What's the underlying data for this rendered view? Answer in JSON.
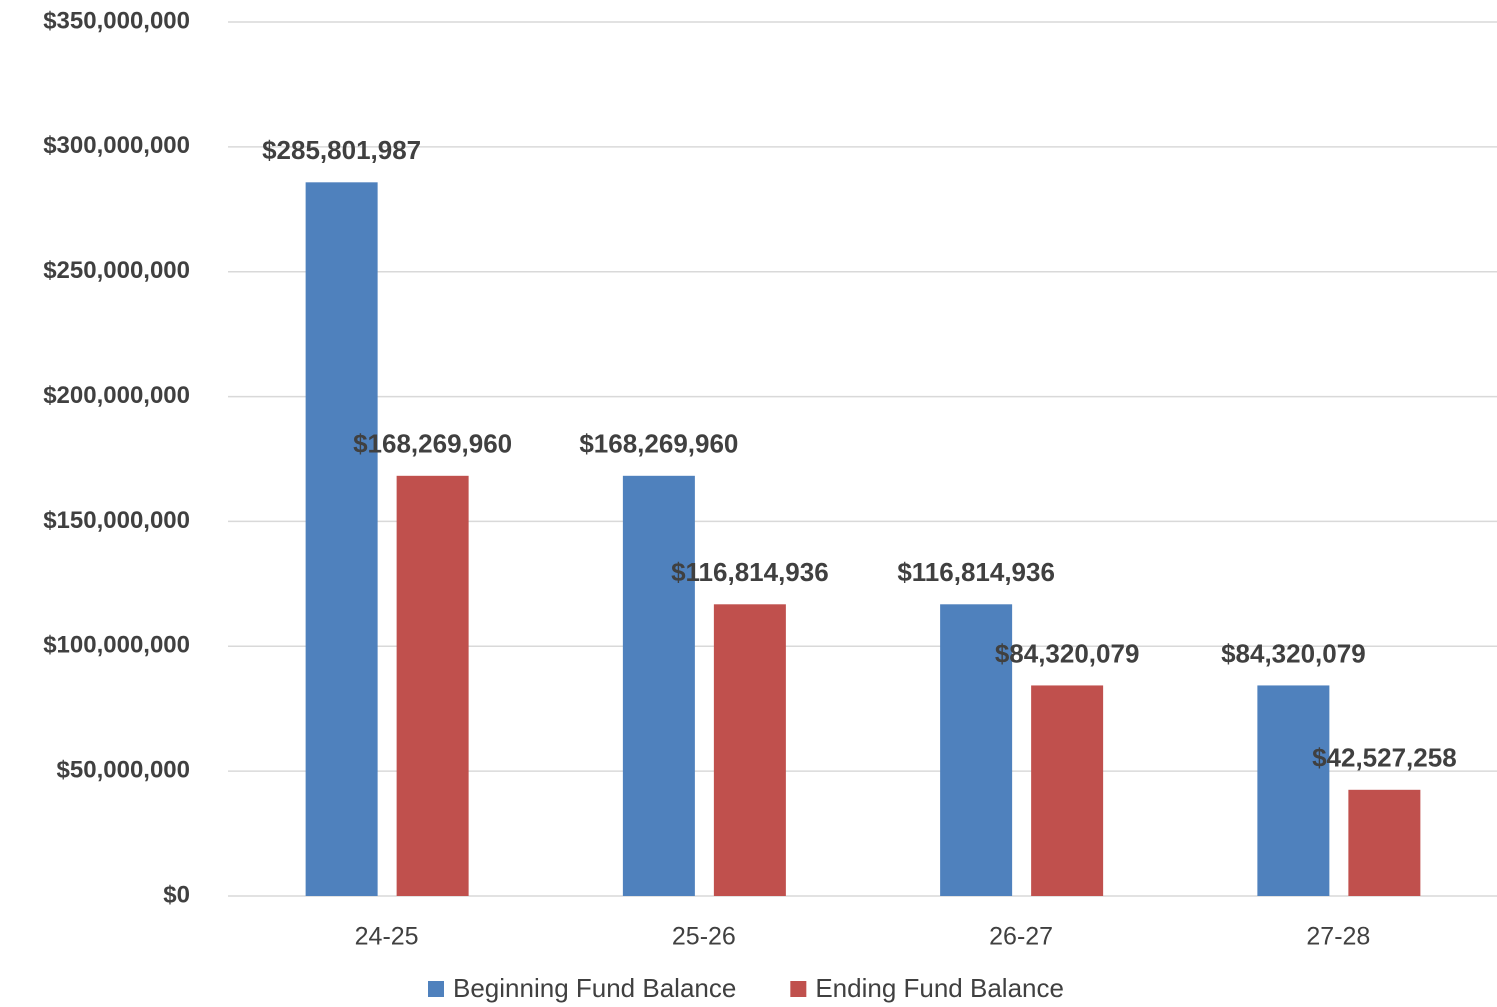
{
  "chart_data": {
    "type": "bar",
    "categories": [
      "24-25",
      "25-26",
      "26-27",
      "27-28"
    ],
    "series": [
      {
        "name": "Beginning Fund Balance",
        "color": "#4f81bd",
        "values": [
          285801987,
          168269960,
          116814936,
          84320079
        ],
        "value_labels": [
          "$285,801,987",
          "$168,269,960",
          "$116,814,936",
          "$84,320,079"
        ]
      },
      {
        "name": "Ending Fund Balance",
        "color": "#c0504d",
        "values": [
          168269960,
          116814936,
          84320079,
          42527258
        ],
        "value_labels": [
          "$168,269,960",
          "$116,814,936",
          "$84,320,079",
          "$42,527,258"
        ]
      }
    ],
    "ylim": [
      0,
      350000000
    ],
    "yticks": [
      {
        "value": 0,
        "label": "$0"
      },
      {
        "value": 50000000,
        "label": "$50,000,000"
      },
      {
        "value": 100000000,
        "label": "$100,000,000"
      },
      {
        "value": 150000000,
        "label": "$150,000,000"
      },
      {
        "value": 200000000,
        "label": "$200,000,000"
      },
      {
        "value": 250000000,
        "label": "$250,000,000"
      },
      {
        "value": 300000000,
        "label": "$300,000,000"
      },
      {
        "value": 350000000,
        "label": "$350,000,000"
      }
    ],
    "grid": true,
    "legend": "bottom"
  }
}
